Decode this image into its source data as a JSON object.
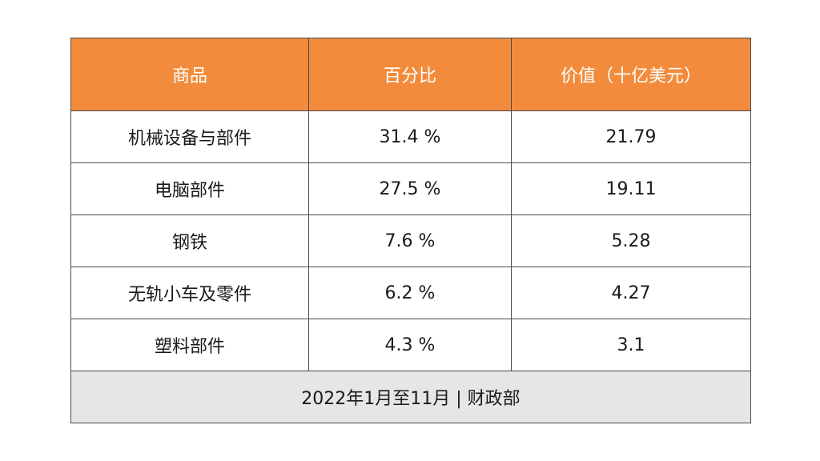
{
  "colors": {
    "header_bg": "#f28c3c",
    "header_text": "#ffffff",
    "footer_bg": "#e6e6e6",
    "border": "#4a4a4a"
  },
  "chart_data": {
    "type": "table",
    "columns": [
      "商品",
      "百分比",
      "价值（十亿美元）"
    ],
    "rows": [
      [
        "机械设备与部件",
        "31.4 %",
        "21.79"
      ],
      [
        "电脑部件",
        "27.5 %",
        "19.11"
      ],
      [
        "钢铁",
        "7.6 %",
        "5.28"
      ],
      [
        "无轨小车及零件",
        "6.2 %",
        "4.27"
      ],
      [
        "塑料部件",
        "4.3 %",
        "3.1"
      ]
    ],
    "footer": "2022年1月至11月 | 财政部"
  }
}
